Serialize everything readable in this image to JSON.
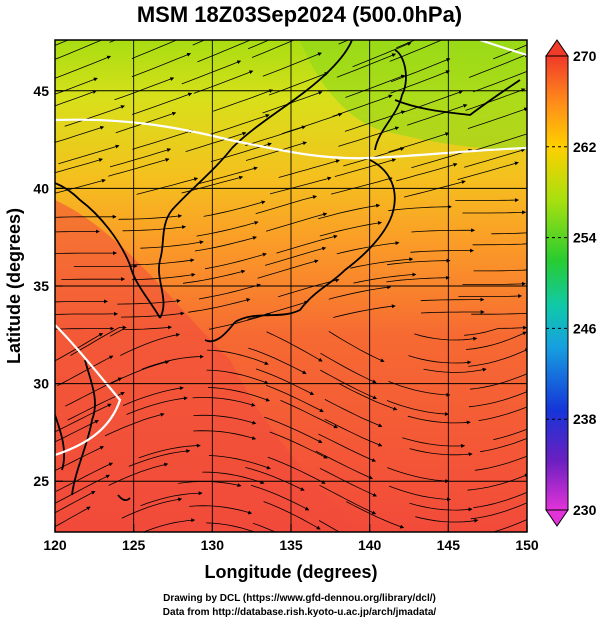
{
  "title": "MSM 18Z03Sep2024 (500.0hPa)",
  "credits": [
    "Drawing by DCL (https://www.gfd-dennou.org/library/dcl/)",
    "Data from http://database.rish.kyoto-u.ac.jp/arch/jmadata/"
  ],
  "chart_data": {
    "type": "map",
    "xlabel": "Longitude (degrees)",
    "ylabel": "Latitude  (degrees)",
    "xlim": [
      120,
      150
    ],
    "ylim": [
      22.4,
      47.6
    ],
    "xticks": [
      120,
      125,
      130,
      135,
      140,
      145,
      150
    ],
    "yticks": [
      25,
      30,
      35,
      40,
      45
    ],
    "colorbar": {
      "min": 230,
      "max": 270,
      "ticks": [
        230,
        238,
        246,
        254,
        262,
        270
      ],
      "colors": [
        "#e233d8",
        "#6a1fc0",
        "#1535d8",
        "#16a0e0",
        "#10c9a8",
        "#28cc30",
        "#a6e010",
        "#ffd000",
        "#ff8a1a",
        "#f03a2a"
      ]
    },
    "contour_level": 262,
    "field_colors": {
      "warm": "#f24a3a",
      "mid": "#fb8a2a",
      "cool": "#f0c21c",
      "cold": "#a8dd12"
    }
  }
}
